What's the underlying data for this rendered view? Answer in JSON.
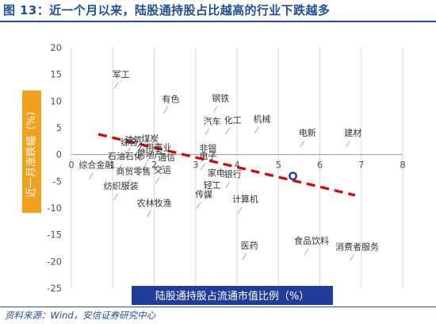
{
  "figure_title": "图 13：近一个月以来，陆股通持股占比越高的行业下跌越多",
  "source": "资料来源：Wind，安信证券研究中心",
  "colors": {
    "title": "#1f4e9a",
    "axis_label_bg_x": "#1f3d99",
    "axis_label_bg_y": "#f0a120",
    "trendline": "#e00000",
    "highlight": "#1f3d99",
    "gridline": "#d9d9d9"
  },
  "chart_data": {
    "type": "scatter",
    "xlabel": "陆股通持股占流通市值比例（%）",
    "ylabel": "近一月涨跌幅（%）",
    "xlim": [
      0,
      8
    ],
    "ylim": [
      -25,
      20
    ],
    "xticks": [
      0,
      1,
      2,
      3,
      4,
      5,
      6,
      7,
      8
    ],
    "yticks": [
      20,
      15,
      10,
      5,
      0,
      -5,
      -10,
      -15,
      -20,
      -25
    ],
    "grid": "vertical",
    "points": [
      {
        "label": "军工",
        "x": 1.2,
        "y": 14.4
      },
      {
        "label": "有色",
        "x": 2.4,
        "y": 9.8
      },
      {
        "label": "钢铁",
        "x": 3.6,
        "y": 10.0
      },
      {
        "label": "汽车",
        "x": 3.4,
        "y": 5.7
      },
      {
        "label": "化工",
        "x": 3.9,
        "y": 5.9
      },
      {
        "label": "机械",
        "x": 4.6,
        "y": 6.1
      },
      {
        "label": "建筑",
        "x": 1.5,
        "y": 2.2
      },
      {
        "label": "煤炭",
        "x": 1.9,
        "y": 2.4
      },
      {
        "label": "综合",
        "x": 1.4,
        "y": 1.7
      },
      {
        "label": "公用事业",
        "x": 2.0,
        "y": 0.8
      },
      {
        "label": "非银",
        "x": 3.3,
        "y": 0.6
      },
      {
        "label": "电新",
        "x": 5.7,
        "y": 3.5
      },
      {
        "label": "建材",
        "x": 6.8,
        "y": 3.5
      },
      {
        "label": "石油石化",
        "x": 1.3,
        "y": -0.9
      },
      {
        "label": "房地产",
        "x": 1.9,
        "y": -0.6
      },
      {
        "label": "通信",
        "x": 2.3,
        "y": -1.1
      },
      {
        "label": "电子",
        "x": 3.3,
        "y": -0.8
      },
      {
        "label": "综合金融",
        "x": 0.6,
        "y": -2.5
      },
      {
        "label": "商贸零售",
        "x": 1.5,
        "y": -3.7
      },
      {
        "label": "交运",
        "x": 2.2,
        "y": -3.4
      },
      {
        "label": "家电",
        "x": 3.5,
        "y": -4.0
      },
      {
        "label": "银行",
        "x": 3.9,
        "y": -4.2
      },
      {
        "label": "轻工",
        "x": 3.4,
        "y": -6.3
      },
      {
        "label": "纺织服装",
        "x": 1.2,
        "y": -6.4
      },
      {
        "label": "传媒",
        "x": 3.2,
        "y": -8.0
      },
      {
        "label": "计算机",
        "x": 4.2,
        "y": -8.9
      },
      {
        "label": "农林牧渔",
        "x": 2.0,
        "y": -9.6
      },
      {
        "label": "医药",
        "x": 4.3,
        "y": -17.6
      },
      {
        "label": "食品饮料",
        "x": 5.8,
        "y": -16.7
      },
      {
        "label": "消费者服务",
        "x": 6.9,
        "y": -17.8
      }
    ],
    "highlight_point": {
      "x": 5.35,
      "y": -4.0
    },
    "trendline": {
      "x0": 0.65,
      "y0": 3.8,
      "x1": 6.85,
      "y1": -7.6
    }
  }
}
